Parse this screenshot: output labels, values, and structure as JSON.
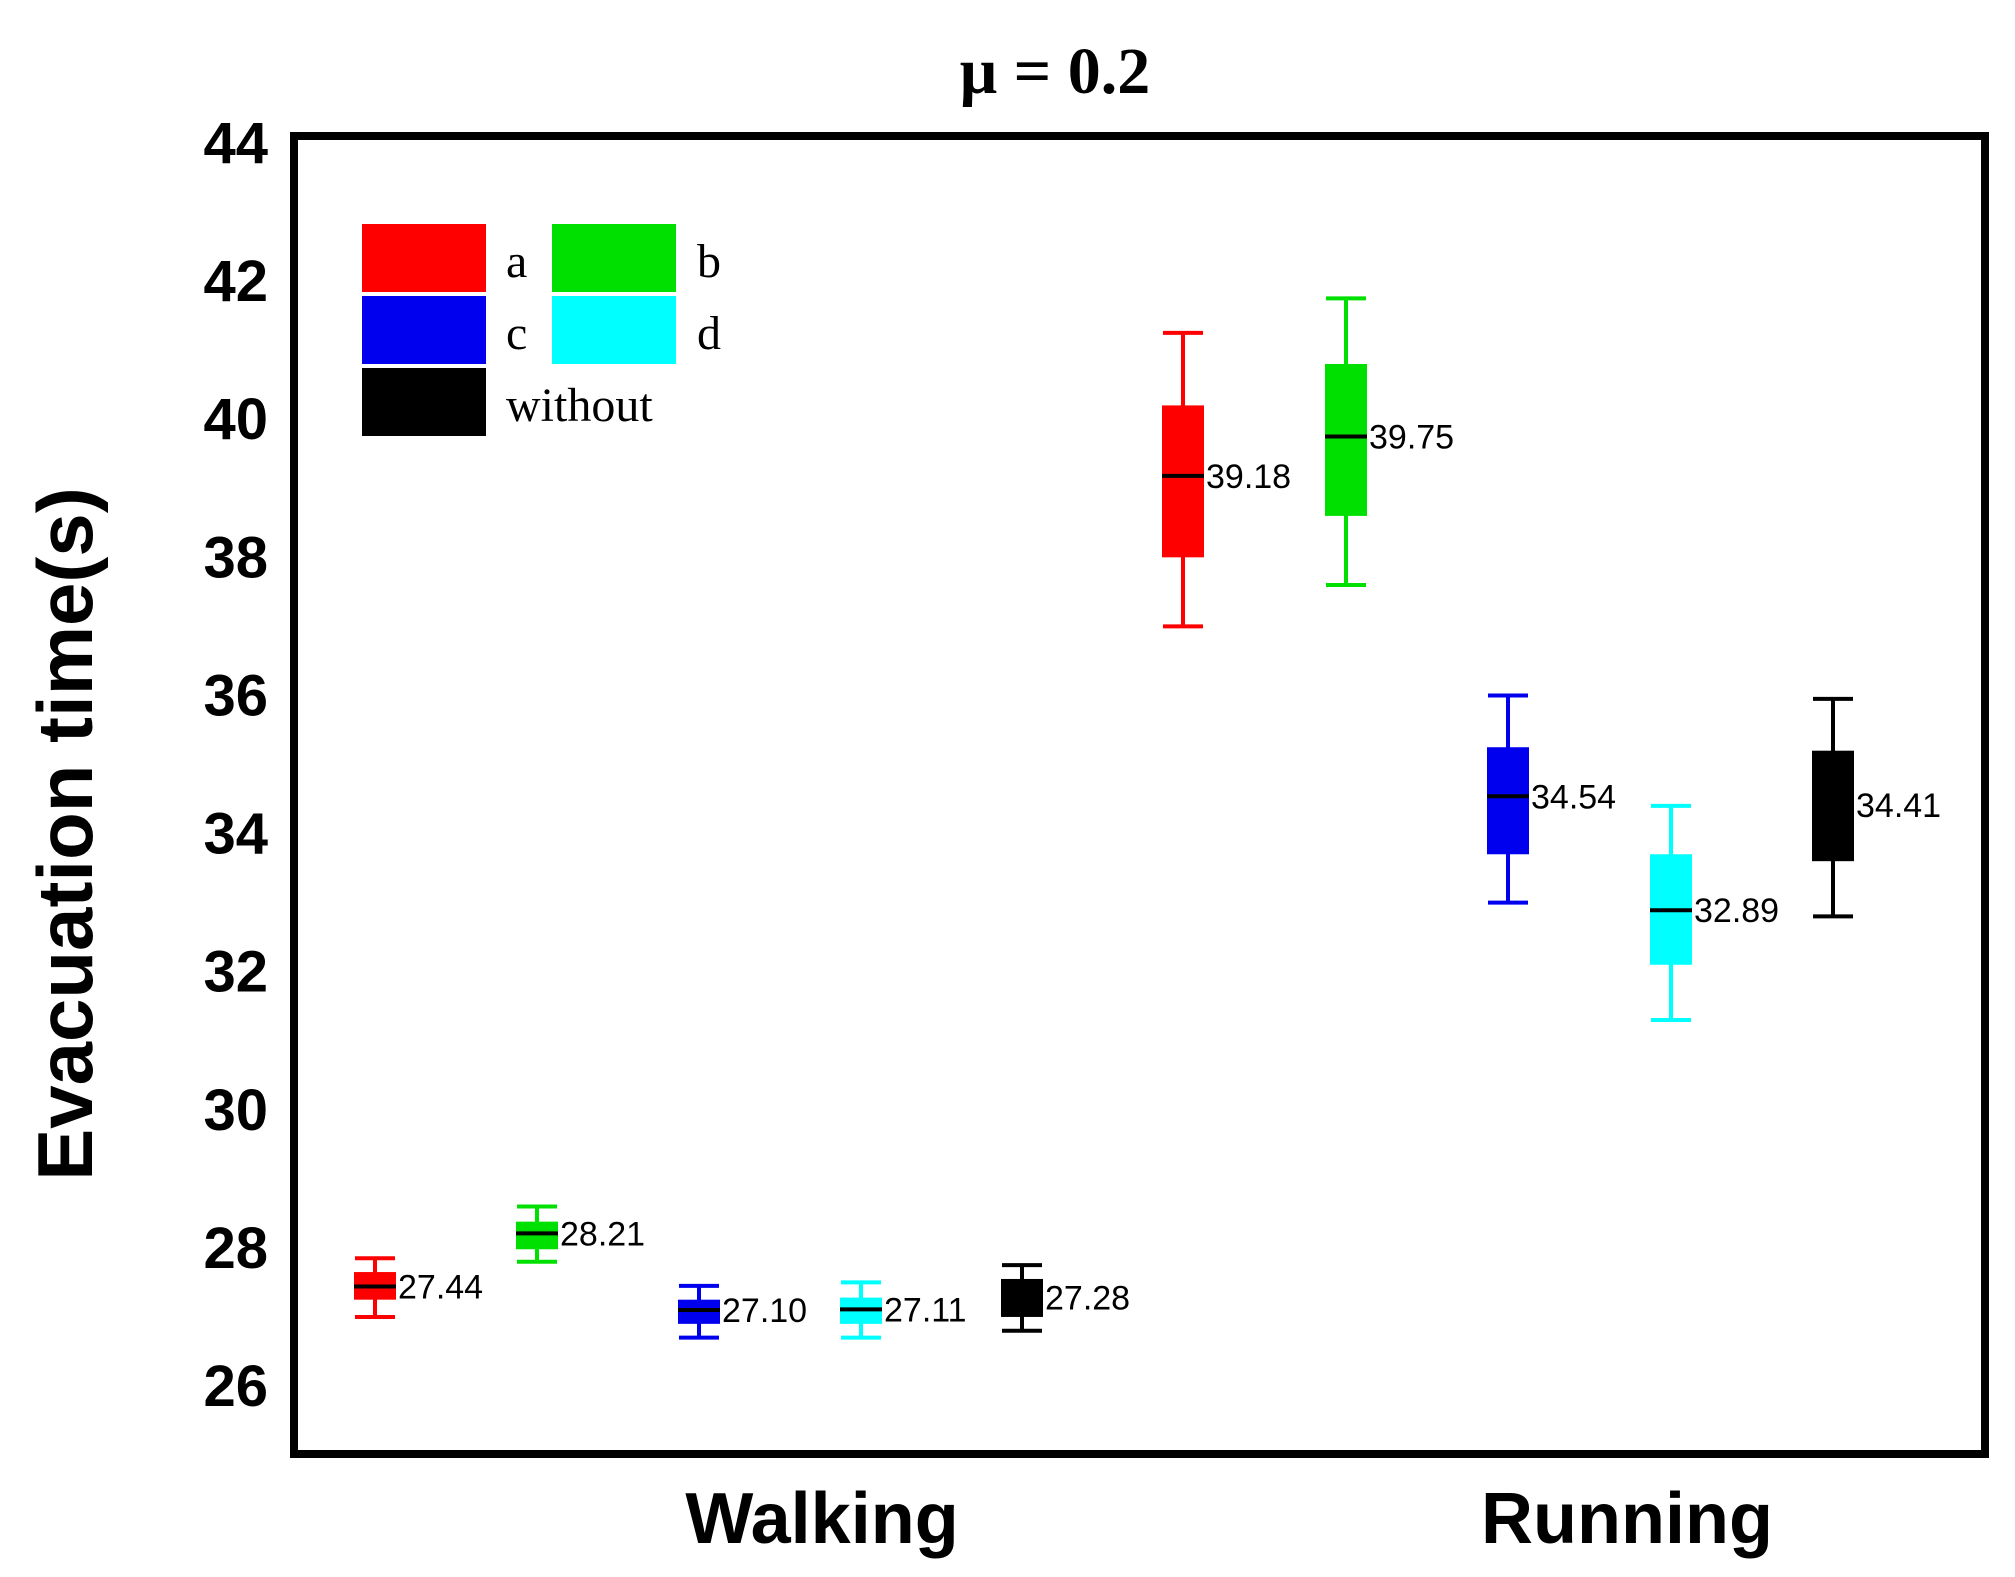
{
  "chart_data": {
    "type": "boxplot",
    "title": "μ = 0.2",
    "ylabel": "Evacuation time(s)",
    "xlabel": "",
    "ylim": [
      25,
      44
    ],
    "yticks": [
      "26",
      "28",
      "30",
      "32",
      "34",
      "36",
      "38",
      "40",
      "42",
      "44"
    ],
    "categories": [
      "Walking",
      "Running"
    ],
    "legend_position": "top-left",
    "series": [
      {
        "name": "a",
        "color": "#ff0000",
        "boxes": [
          {
            "category": "Walking",
            "whisker_low": 27.0,
            "q1": 27.25,
            "median": 27.44,
            "q3": 27.65,
            "whisker_high": 27.85,
            "label": "27.44"
          },
          {
            "category": "Running",
            "whisker_low": 37.0,
            "q1": 38.0,
            "median": 39.18,
            "q3": 40.2,
            "whisker_high": 41.25,
            "label": "39.18"
          }
        ]
      },
      {
        "name": "b",
        "color": "#00e000",
        "boxes": [
          {
            "category": "Walking",
            "whisker_low": 27.8,
            "q1": 27.98,
            "median": 28.21,
            "q3": 28.38,
            "whisker_high": 28.6,
            "label": "28.21"
          },
          {
            "category": "Running",
            "whisker_low": 37.6,
            "q1": 38.6,
            "median": 39.75,
            "q3": 40.8,
            "whisker_high": 41.75,
            "label": "39.75"
          }
        ]
      },
      {
        "name": "c",
        "color": "#0000ee",
        "boxes": [
          {
            "category": "Walking",
            "whisker_low": 26.7,
            "q1": 26.9,
            "median": 27.1,
            "q3": 27.25,
            "whisker_high": 27.45,
            "label": "27.10"
          },
          {
            "category": "Running",
            "whisker_low": 33.0,
            "q1": 33.7,
            "median": 34.54,
            "q3": 35.25,
            "whisker_high": 36.0,
            "label": "34.54"
          }
        ]
      },
      {
        "name": "d",
        "color": "#00ffff",
        "boxes": [
          {
            "category": "Walking",
            "whisker_low": 26.7,
            "q1": 26.9,
            "median": 27.11,
            "q3": 27.28,
            "whisker_high": 27.5,
            "label": "27.11"
          },
          {
            "category": "Running",
            "whisker_low": 31.3,
            "q1": 32.1,
            "median": 32.89,
            "q3": 33.7,
            "whisker_high": 34.4,
            "label": "32.89"
          }
        ]
      },
      {
        "name": "without",
        "color": "#000000",
        "boxes": [
          {
            "category": "Walking",
            "whisker_low": 26.8,
            "q1": 27.0,
            "median": 27.28,
            "q3": 27.55,
            "whisker_high": 27.75,
            "label": "27.28"
          },
          {
            "category": "Running",
            "whisker_low": 32.8,
            "q1": 33.6,
            "median": 34.41,
            "q3": 35.2,
            "whisker_high": 35.95,
            "label": "34.41"
          }
        ]
      }
    ]
  }
}
